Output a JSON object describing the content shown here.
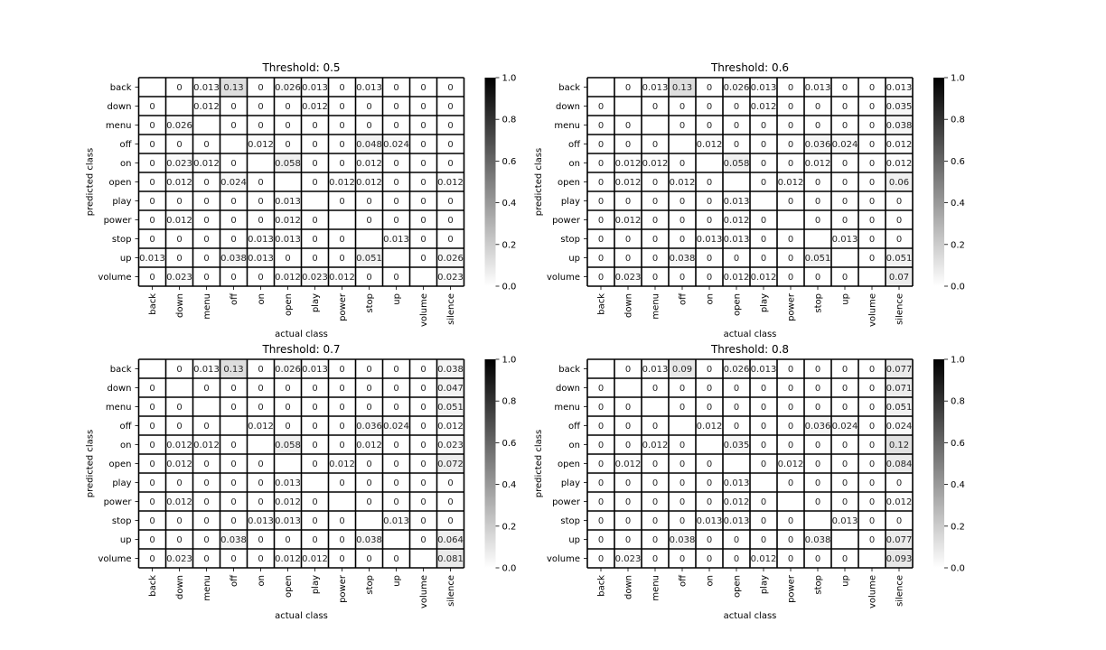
{
  "chart_data": [
    {
      "type": "heatmap",
      "title": "Threshold: 0.5",
      "xlabel": "actual class",
      "ylabel": "predicted class",
      "x_categories": [
        "back",
        "down",
        "menu",
        "off",
        "on",
        "open",
        "play",
        "power",
        "stop",
        "up",
        "volume",
        "silence"
      ],
      "y_categories": [
        "back",
        "down",
        "menu",
        "off",
        "on",
        "open",
        "play",
        "power",
        "stop",
        "up",
        "volume"
      ],
      "values": [
        [
          null,
          "0",
          "0.013",
          "0.13",
          "0",
          "0.026",
          "0.013",
          "0",
          "0.013",
          "0",
          "0",
          "0"
        ],
        [
          "0",
          null,
          "0.012",
          "0",
          "0",
          "0",
          "0.012",
          "0",
          "0",
          "0",
          "0",
          "0"
        ],
        [
          "0",
          "0.026",
          null,
          "0",
          "0",
          "0",
          "0",
          "0",
          "0",
          "0",
          "0",
          "0"
        ],
        [
          "0",
          "0",
          "0",
          null,
          "0.012",
          "0",
          "0",
          "0",
          "0.048",
          "0.024",
          "0",
          "0"
        ],
        [
          "0",
          "0.023",
          "0.012",
          "0",
          null,
          "0.058",
          "0",
          "0",
          "0.012",
          "0",
          "0",
          "0"
        ],
        [
          "0",
          "0.012",
          "0",
          "0.024",
          "0",
          null,
          "0",
          "0.012",
          "0.012",
          "0",
          "0",
          "0.012"
        ],
        [
          "0",
          "0",
          "0",
          "0",
          "0",
          "0.013",
          null,
          "0",
          "0",
          "0",
          "0",
          "0"
        ],
        [
          "0",
          "0.012",
          "0",
          "0",
          "0",
          "0.012",
          "0",
          null,
          "0",
          "0",
          "0",
          "0"
        ],
        [
          "0",
          "0",
          "0",
          "0",
          "0.013",
          "0.013",
          "0",
          "0",
          null,
          "0.013",
          "0",
          "0"
        ],
        [
          "0.013",
          "0",
          "0",
          "0.038",
          "0.013",
          "0",
          "0",
          "0",
          "0.051",
          null,
          "0",
          "0.026"
        ],
        [
          "0",
          "0.023",
          "0",
          "0",
          "0",
          "0.012",
          "0.023",
          "0.012",
          "0",
          "0",
          null,
          "0.023"
        ]
      ],
      "colorbar": {
        "min": 0.0,
        "max": 1.0,
        "ticks": [
          "0.0",
          "0.2",
          "0.4",
          "0.6",
          "0.8",
          "1.0"
        ],
        "colormap": "white-to-black"
      }
    },
    {
      "type": "heatmap",
      "title": "Threshold: 0.6",
      "xlabel": "actual class",
      "ylabel": "predicted class",
      "x_categories": [
        "back",
        "down",
        "menu",
        "off",
        "on",
        "open",
        "play",
        "power",
        "stop",
        "up",
        "volume",
        "silence"
      ],
      "y_categories": [
        "back",
        "down",
        "menu",
        "off",
        "on",
        "open",
        "play",
        "power",
        "stop",
        "up",
        "volume"
      ],
      "values": [
        [
          null,
          "0",
          "0.013",
          "0.13",
          "0",
          "0.026",
          "0.013",
          "0",
          "0.013",
          "0",
          "0",
          "0.013"
        ],
        [
          "0",
          null,
          "0",
          "0",
          "0",
          "0",
          "0.012",
          "0",
          "0",
          "0",
          "0",
          "0.035"
        ],
        [
          "0",
          "0",
          null,
          "0",
          "0",
          "0",
          "0",
          "0",
          "0",
          "0",
          "0",
          "0.038"
        ],
        [
          "0",
          "0",
          "0",
          null,
          "0.012",
          "0",
          "0",
          "0",
          "0.036",
          "0.024",
          "0",
          "0.012"
        ],
        [
          "0",
          "0.012",
          "0.012",
          "0",
          null,
          "0.058",
          "0",
          "0",
          "0.012",
          "0",
          "0",
          "0.012"
        ],
        [
          "0",
          "0.012",
          "0",
          "0.012",
          "0",
          null,
          "0",
          "0.012",
          "0",
          "0",
          "0",
          "0.06"
        ],
        [
          "0",
          "0",
          "0",
          "0",
          "0",
          "0.013",
          null,
          "0",
          "0",
          "0",
          "0",
          "0"
        ],
        [
          "0",
          "0.012",
          "0",
          "0",
          "0",
          "0.012",
          "0",
          null,
          "0",
          "0",
          "0",
          "0"
        ],
        [
          "0",
          "0",
          "0",
          "0",
          "0.013",
          "0.013",
          "0",
          "0",
          null,
          "0.013",
          "0",
          "0"
        ],
        [
          "0",
          "0",
          "0",
          "0.038",
          "0",
          "0",
          "0",
          "0",
          "0.051",
          null,
          "0",
          "0.051"
        ],
        [
          "0",
          "0.023",
          "0",
          "0",
          "0",
          "0.012",
          "0.012",
          "0",
          "0",
          "0",
          null,
          "0.07"
        ]
      ],
      "colorbar": {
        "min": 0.0,
        "max": 1.0,
        "ticks": [
          "0.0",
          "0.2",
          "0.4",
          "0.6",
          "0.8",
          "1.0"
        ],
        "colormap": "white-to-black"
      }
    },
    {
      "type": "heatmap",
      "title": "Threshold: 0.7",
      "xlabel": "actual class",
      "ylabel": "predicted class",
      "x_categories": [
        "back",
        "down",
        "menu",
        "off",
        "on",
        "open",
        "play",
        "power",
        "stop",
        "up",
        "volume",
        "silence"
      ],
      "y_categories": [
        "back",
        "down",
        "menu",
        "off",
        "on",
        "open",
        "play",
        "power",
        "stop",
        "up",
        "volume"
      ],
      "values": [
        [
          null,
          "0",
          "0.013",
          "0.13",
          "0",
          "0.026",
          "0.013",
          "0",
          "0",
          "0",
          "0",
          "0.038"
        ],
        [
          "0",
          null,
          "0",
          "0",
          "0",
          "0",
          "0",
          "0",
          "0",
          "0",
          "0",
          "0.047"
        ],
        [
          "0",
          "0",
          null,
          "0",
          "0",
          "0",
          "0",
          "0",
          "0",
          "0",
          "0",
          "0.051"
        ],
        [
          "0",
          "0",
          "0",
          null,
          "0.012",
          "0",
          "0",
          "0",
          "0.036",
          "0.024",
          "0",
          "0.012"
        ],
        [
          "0",
          "0.012",
          "0.012",
          "0",
          null,
          "0.058",
          "0",
          "0",
          "0.012",
          "0",
          "0",
          "0.023"
        ],
        [
          "0",
          "0.012",
          "0",
          "0",
          "0",
          null,
          "0",
          "0.012",
          "0",
          "0",
          "0",
          "0.072"
        ],
        [
          "0",
          "0",
          "0",
          "0",
          "0",
          "0.013",
          null,
          "0",
          "0",
          "0",
          "0",
          "0"
        ],
        [
          "0",
          "0.012",
          "0",
          "0",
          "0",
          "0.012",
          "0",
          null,
          "0",
          "0",
          "0",
          "0"
        ],
        [
          "0",
          "0",
          "0",
          "0",
          "0.013",
          "0.013",
          "0",
          "0",
          null,
          "0.013",
          "0",
          "0"
        ],
        [
          "0",
          "0",
          "0",
          "0.038",
          "0",
          "0",
          "0",
          "0",
          "0.038",
          null,
          "0",
          "0.064"
        ],
        [
          "0",
          "0.023",
          "0",
          "0",
          "0",
          "0.012",
          "0.012",
          "0",
          "0",
          "0",
          null,
          "0.081"
        ]
      ],
      "colorbar": {
        "min": 0.0,
        "max": 1.0,
        "ticks": [
          "0.0",
          "0.2",
          "0.4",
          "0.6",
          "0.8",
          "1.0"
        ],
        "colormap": "white-to-black"
      }
    },
    {
      "type": "heatmap",
      "title": "Threshold: 0.8",
      "xlabel": "actual class",
      "ylabel": "predicted class",
      "x_categories": [
        "back",
        "down",
        "menu",
        "off",
        "on",
        "open",
        "play",
        "power",
        "stop",
        "up",
        "volume",
        "silence"
      ],
      "y_categories": [
        "back",
        "down",
        "menu",
        "off",
        "on",
        "open",
        "play",
        "power",
        "stop",
        "up",
        "volume"
      ],
      "values": [
        [
          null,
          "0",
          "0.013",
          "0.09",
          "0",
          "0.026",
          "0.013",
          "0",
          "0",
          "0",
          "0",
          "0.077"
        ],
        [
          "0",
          null,
          "0",
          "0",
          "0",
          "0",
          "0",
          "0",
          "0",
          "0",
          "0",
          "0.071"
        ],
        [
          "0",
          "0",
          null,
          "0",
          "0",
          "0",
          "0",
          "0",
          "0",
          "0",
          "0",
          "0.051"
        ],
        [
          "0",
          "0",
          "0",
          null,
          "0.012",
          "0",
          "0",
          "0",
          "0.036",
          "0.024",
          "0",
          "0.024"
        ],
        [
          "0",
          "0",
          "0.012",
          "0",
          null,
          "0.035",
          "0",
          "0",
          "0",
          "0",
          "0",
          "0.12"
        ],
        [
          "0",
          "0.012",
          "0",
          "0",
          "0",
          null,
          "0",
          "0.012",
          "0",
          "0",
          "0",
          "0.084"
        ],
        [
          "0",
          "0",
          "0",
          "0",
          "0",
          "0.013",
          null,
          "0",
          "0",
          "0",
          "0",
          "0"
        ],
        [
          "0",
          "0",
          "0",
          "0",
          "0",
          "0.012",
          "0",
          null,
          "0",
          "0",
          "0",
          "0.012"
        ],
        [
          "0",
          "0",
          "0",
          "0",
          "0.013",
          "0.013",
          "0",
          "0",
          null,
          "0.013",
          "0",
          "0"
        ],
        [
          "0",
          "0",
          "0",
          "0.038",
          "0",
          "0",
          "0",
          "0",
          "0.038",
          null,
          "0",
          "0.077"
        ],
        [
          "0",
          "0.023",
          "0",
          "0",
          "0",
          "0",
          "0.012",
          "0",
          "0",
          "0",
          null,
          "0.093"
        ]
      ],
      "colorbar": {
        "min": 0.0,
        "max": 1.0,
        "ticks": [
          "0.0",
          "0.2",
          "0.4",
          "0.6",
          "0.8",
          "1.0"
        ],
        "colormap": "white-to-black"
      }
    }
  ]
}
